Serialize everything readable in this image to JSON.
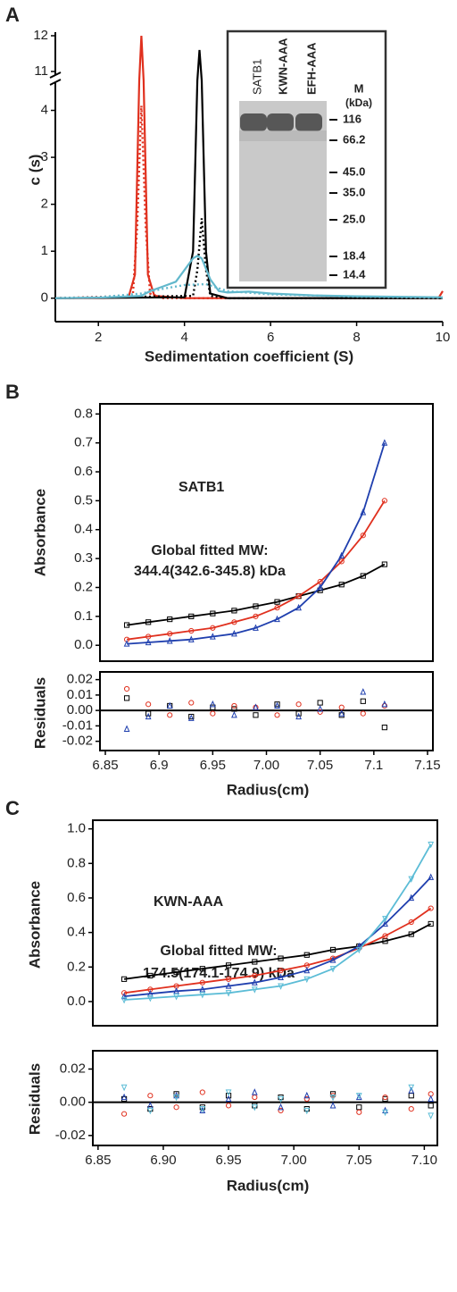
{
  "chart_data": [
    {
      "type": "line",
      "panel": "A",
      "ylabel": "c (s)",
      "xlabel": "Sedimentation coefficient (S)",
      "xlim": [
        1,
        10
      ],
      "xticks": [
        2,
        4,
        6,
        8,
        10
      ],
      "ylim": [
        -0.5,
        12.1
      ],
      "ybreak": [
        4.6,
        10.9
      ],
      "yticks": [
        0,
        1,
        2,
        3,
        4,
        11,
        12
      ],
      "series": [
        {
          "color": "#e0301e",
          "style": "solid",
          "x": [
            1,
            2,
            2.7,
            2.85,
            2.95,
            3.0,
            3.05,
            3.15,
            3.3,
            4,
            6,
            8,
            9.9,
            10
          ],
          "values": [
            0,
            0,
            0.02,
            0.5,
            6,
            12,
            6,
            0.5,
            0.05,
            0,
            0,
            0,
            0,
            0.15
          ]
        },
        {
          "color": "#e0301e",
          "style": "dotted",
          "x": [
            1,
            2.8,
            2.9,
            3.0,
            3.1,
            3.2,
            3.5,
            10
          ],
          "values": [
            0,
            0.05,
            1.5,
            4.1,
            1.5,
            0.1,
            0,
            0
          ]
        },
        {
          "color": "#000000",
          "style": "solid",
          "x": [
            1,
            4,
            4.2,
            4.3,
            4.35,
            4.4,
            4.5,
            4.6,
            5,
            10
          ],
          "values": [
            0,
            0.02,
            1,
            6,
            11.6,
            6,
            1,
            0.1,
            0,
            0
          ]
        },
        {
          "color": "#000000",
          "style": "dotted",
          "x": [
            1,
            4.2,
            4.3,
            4.4,
            4.5,
            4.6,
            5,
            10
          ],
          "values": [
            0,
            0.05,
            0.6,
            1.7,
            0.6,
            0.05,
            0,
            0
          ]
        },
        {
          "color": "#62b8cc",
          "style": "solid",
          "x": [
            1,
            2,
            3,
            3.2,
            3.5,
            3.8,
            4.0,
            4.2,
            4.3,
            4.4,
            4.6,
            4.8,
            5.0,
            5.5,
            6,
            7,
            8,
            10
          ],
          "values": [
            0,
            0.01,
            0.05,
            0.15,
            0.25,
            0.35,
            0.6,
            0.85,
            0.9,
            0.85,
            0.4,
            0.15,
            0.12,
            0.14,
            0.1,
            0.06,
            0.04,
            0.02
          ]
        },
        {
          "color": "#62b8cc",
          "style": "dotted",
          "x": [
            1,
            2,
            3,
            3.5,
            4,
            4.5,
            5,
            6,
            8,
            10
          ],
          "values": [
            0,
            0.02,
            0.1,
            0.2,
            0.28,
            0.3,
            0.15,
            0.08,
            0.03,
            0.01
          ]
        }
      ],
      "inset": {
        "lanes": [
          {
            "name": "SATB1",
            "color": "#000000"
          },
          {
            "name": "KWN-AAA",
            "color": "#e0301e"
          },
          {
            "name": "EFH-AAA",
            "color": "#2aa6d8"
          }
        ],
        "marker_title": "M",
        "marker_unit": "(kDa)",
        "markers": [
          116,
          66.2,
          {
            "value": 45,
            "label": "45.0"
          },
          {
            "value": 35,
            "label": "35.0"
          },
          {
            "value": 25,
            "label": "25.0"
          },
          18.4,
          14.4
        ]
      }
    },
    {
      "type": "line",
      "panel": "B",
      "ylabel": "Absorbance",
      "xlim": [
        6.845,
        7.155
      ],
      "ylim": [
        -0.055,
        0.835
      ],
      "yticks": [
        {
          "value": 0,
          "label": "0.0"
        },
        0.1,
        0.2,
        0.3,
        0.4,
        0.5,
        0.6,
        0.7,
        0.8
      ],
      "annotations": [
        {
          "text": "SATB1",
          "color": "#333333"
        },
        {
          "text": "Global fitted MW:",
          "color": "#333333"
        },
        {
          "text": "344.4(342.6-345.8) kDa",
          "color": "#333333"
        }
      ],
      "x": [
        6.87,
        6.89,
        6.91,
        6.93,
        6.95,
        6.97,
        6.99,
        7.01,
        7.03,
        7.05,
        7.07,
        7.09,
        7.11
      ],
      "series": [
        {
          "color": "#000000",
          "marker": "square",
          "values": [
            0.07,
            0.08,
            0.09,
            0.1,
            0.11,
            0.12,
            0.135,
            0.15,
            0.17,
            0.19,
            0.21,
            0.24,
            0.28
          ]
        },
        {
          "color": "#e0301e",
          "marker": "circle",
          "values": [
            0.02,
            0.03,
            0.04,
            0.05,
            0.06,
            0.08,
            0.1,
            0.13,
            0.17,
            0.22,
            0.29,
            0.38,
            0.5
          ]
        },
        {
          "color": "#1f3fae",
          "marker": "triangle",
          "values": [
            0.005,
            0.01,
            0.015,
            0.02,
            0.03,
            0.04,
            0.06,
            0.09,
            0.13,
            0.2,
            0.31,
            0.46,
            0.7
          ]
        }
      ]
    },
    {
      "type": "scatter",
      "ylabel": "Residuals",
      "xlabel": "Radius(cm)",
      "xlim": [
        6.845,
        7.155
      ],
      "xticks": [
        6.85,
        6.9,
        6.95,
        {
          "value": 7,
          "label": "7.00"
        },
        7.05,
        7.1,
        7.15
      ],
      "ylim": [
        -0.026,
        0.025
      ],
      "yticks": [
        0.02,
        0.01,
        {
          "value": 0,
          "label": "0.00"
        },
        -0.01,
        -0.02
      ],
      "hline": 0,
      "x": [
        6.87,
        6.89,
        6.91,
        6.93,
        6.95,
        6.97,
        6.99,
        7.01,
        7.03,
        7.05,
        7.07,
        7.09,
        7.11
      ],
      "series": [
        {
          "color": "#000000",
          "marker": "square",
          "values": [
            0.008,
            -0.002,
            0.003,
            -0.004,
            0.002,
            0.001,
            -0.003,
            0.004,
            -0.002,
            0.005,
            -0.003,
            0.006,
            -0.011
          ]
        },
        {
          "color": "#e0301e",
          "marker": "circle",
          "values": [
            0.014,
            0.004,
            -0.003,
            0.005,
            -0.002,
            0.003,
            0.002,
            -0.003,
            0.004,
            -0.001,
            0.002,
            -0.002,
            0.003
          ]
        },
        {
          "color": "#1f3fae",
          "marker": "triangle",
          "values": [
            -0.012,
            -0.004,
            0.003,
            -0.005,
            0.004,
            -0.003,
            0.002,
            0.003,
            -0.004,
            0.001,
            -0.002,
            0.012,
            0.004
          ]
        }
      ]
    },
    {
      "type": "line",
      "panel": "C",
      "ylabel": "Absorbance",
      "xlim": [
        6.846,
        7.11
      ],
      "ylim": [
        -0.14,
        1.05
      ],
      "yticks": [
        {
          "value": 0,
          "label": "0.0"
        },
        0.2,
        0.4,
        0.6,
        0.8,
        {
          "value": 1,
          "label": "1.0"
        }
      ],
      "annotations": [
        {
          "text": "KWN-AAA",
          "color": "#e0301e"
        },
        {
          "text": "Global fitted MW:",
          "color": "#222222"
        },
        {
          "text": "174.5(174.1-174.9) kDa",
          "color": "#222222"
        }
      ],
      "x": [
        6.87,
        6.89,
        6.91,
        6.93,
        6.95,
        6.97,
        6.99,
        7.01,
        7.03,
        7.05,
        7.07,
        7.09,
        7.105
      ],
      "series": [
        {
          "color": "#000000",
          "marker": "square",
          "values": [
            0.13,
            0.15,
            0.17,
            0.19,
            0.21,
            0.23,
            0.25,
            0.27,
            0.3,
            0.32,
            0.35,
            0.39,
            0.45
          ]
        },
        {
          "color": "#e0301e",
          "marker": "circle",
          "values": [
            0.05,
            0.07,
            0.09,
            0.11,
            0.13,
            0.15,
            0.18,
            0.21,
            0.25,
            0.31,
            0.38,
            0.46,
            0.54
          ]
        },
        {
          "color": "#1f3fae",
          "marker": "triangle",
          "values": [
            0.03,
            0.045,
            0.06,
            0.07,
            0.09,
            0.11,
            0.14,
            0.18,
            0.24,
            0.32,
            0.45,
            0.6,
            0.72
          ]
        },
        {
          "color": "#5bbcd6",
          "marker": "triangle-down",
          "values": [
            0.01,
            0.02,
            0.03,
            0.04,
            0.05,
            0.07,
            0.09,
            0.13,
            0.19,
            0.3,
            0.48,
            0.71,
            0.91
          ]
        }
      ]
    },
    {
      "type": "scatter",
      "ylabel": "Residuals",
      "xlabel": "Radius(cm)",
      "xlim": [
        6.846,
        7.11
      ],
      "xticks": [
        6.85,
        {
          "value": 6.9,
          "label": "6.90"
        },
        6.95,
        {
          "value": 7,
          "label": "7.00"
        },
        7.05,
        {
          "value": 7.1,
          "label": "7.10"
        }
      ],
      "ylim": [
        -0.026,
        0.031
      ],
      "yticks": [
        0.02,
        {
          "value": 0,
          "label": "0.00"
        },
        -0.02
      ],
      "hline": 0,
      "x": [
        6.87,
        6.89,
        6.91,
        6.93,
        6.95,
        6.97,
        6.99,
        7.01,
        7.03,
        7.05,
        7.07,
        7.09,
        7.105
      ],
      "series": [
        {
          "color": "#000000",
          "marker": "square",
          "values": [
            0.002,
            -0.004,
            0.005,
            -0.003,
            0.004,
            -0.002,
            0.003,
            -0.004,
            0.005,
            -0.003,
            0.002,
            0.004,
            -0.002
          ]
        },
        {
          "color": "#e0301e",
          "marker": "circle",
          "values": [
            -0.007,
            0.004,
            -0.003,
            0.006,
            -0.002,
            0.003,
            -0.005,
            0.002,
            0.004,
            -0.006,
            0.003,
            -0.004,
            0.005
          ]
        },
        {
          "color": "#1f3fae",
          "marker": "triangle",
          "values": [
            0.003,
            -0.002,
            0.004,
            -0.005,
            0.002,
            0.006,
            -0.003,
            0.004,
            -0.002,
            0.003,
            -0.005,
            0.007,
            0.002
          ]
        },
        {
          "color": "#5bbcd6",
          "marker": "triangle-down",
          "values": [
            0.009,
            -0.005,
            0.003,
            -0.004,
            0.006,
            -0.003,
            0.002,
            -0.005,
            0.003,
            0.004,
            -0.006,
            0.009,
            -0.008
          ]
        }
      ]
    }
  ]
}
